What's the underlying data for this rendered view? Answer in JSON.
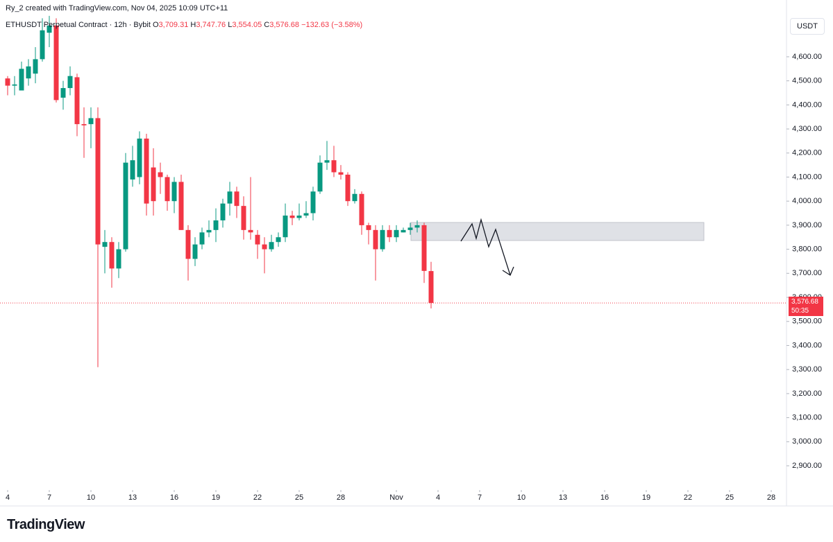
{
  "header": {
    "attribution": "Ry_2 created with TradingView.com, Nov 04, 2025 10:09 UTC+11",
    "symbol": "ETHUSDT Perpetual Contract · 12h · Bybit",
    "o_label": "O",
    "open": "3,709.31",
    "h_label": "H",
    "high": "3,747.76",
    "l_label": "L",
    "low": "3,554.05",
    "c_label": "C",
    "close": "3,576.68",
    "change": "−132.63 (−3.58%)",
    "currency": "USDT"
  },
  "footer": {
    "brand": "TradingView"
  },
  "chart_data": {
    "type": "candlestick",
    "up_color": "#089981",
    "down_color": "#f23645",
    "x": [
      0,
      0.5,
      1,
      1.5,
      2,
      2.5,
      3,
      3.5,
      4,
      4.5,
      5,
      5.5,
      6,
      6.5,
      7,
      7.5,
      8,
      8.5,
      9,
      9.5,
      10,
      10.5,
      11,
      11.5,
      12,
      12.5,
      13,
      13.5,
      14,
      14.5,
      15,
      15.5,
      16,
      16.5,
      17,
      17.5,
      18,
      18.5,
      19,
      19.5,
      20,
      20.5,
      21,
      21.5,
      22,
      22.5,
      23,
      23.5,
      24,
      24.5,
      25,
      25.5,
      26,
      26.5,
      27,
      27.5,
      28,
      28.5,
      29,
      29.5,
      30,
      30.5
    ],
    "open": [
      4510,
      4480,
      4460,
      4510,
      4530,
      4590,
      4700,
      4730,
      4430,
      4470,
      4515,
      4320,
      4320,
      4345,
      3810,
      3830,
      3720,
      3800,
      4090,
      4100,
      4260,
      4140,
      4120,
      4100,
      4000,
      4080,
      3880,
      3760,
      3820,
      3870,
      3880,
      3920,
      3990,
      4040,
      3980,
      3880,
      3860,
      3820,
      3800,
      3830,
      3850,
      3940,
      3930,
      3940,
      3950,
      4040,
      4160,
      4170,
      4120,
      4110,
      4000,
      4030,
      3900,
      3880,
      3800,
      3880,
      3850,
      3870,
      3880,
      3890,
      3900,
      3709.31
    ],
    "high": [
      4520,
      4520,
      4580,
      4590,
      4640,
      4760,
      4770,
      4760,
      4500,
      4560,
      4530,
      4390,
      4390,
      4390,
      3880,
      3850,
      3830,
      4200,
      4230,
      4290,
      4280,
      4220,
      4160,
      4110,
      4100,
      4110,
      3900,
      3850,
      3890,
      3920,
      3970,
      4010,
      4080,
      4060,
      4020,
      4100,
      3880,
      3850,
      3860,
      3870,
      3990,
      3960,
      3990,
      4000,
      4060,
      4190,
      4250,
      4230,
      4150,
      4120,
      4050,
      4040,
      3910,
      3900,
      3900,
      3900,
      3900,
      3890,
      3910,
      3920,
      3910,
      3747.76
    ],
    "low": [
      4440,
      4440,
      4460,
      4480,
      4490,
      4580,
      4640,
      4410,
      4380,
      4440,
      4270,
      4180,
      4220,
      3310,
      3700,
      3640,
      3680,
      3790,
      4060,
      4070,
      3940,
      3940,
      4030,
      3960,
      3950,
      3880,
      3670,
      3730,
      3800,
      3850,
      3830,
      3890,
      3940,
      3930,
      3840,
      3840,
      3760,
      3700,
      3790,
      3810,
      3830,
      3900,
      3920,
      3930,
      3920,
      4030,
      4130,
      4100,
      4090,
      3980,
      3990,
      3860,
      3820,
      3670,
      3790,
      3830,
      3830,
      3870,
      3860,
      3870,
      3660,
      3554.05
    ],
    "close": [
      4480,
      4485,
      4550,
      4560,
      4590,
      4710,
      4730,
      4420,
      4470,
      4520,
      4320,
      4315,
      4345,
      3820,
      3830,
      3720,
      3800,
      4160,
      4170,
      4260,
      3990,
      4000,
      4100,
      4000,
      4080,
      3880,
      3760,
      3820,
      3870,
      3880,
      3920,
      3990,
      4040,
      3980,
      3880,
      3870,
      3820,
      3800,
      3830,
      3850,
      3940,
      3930,
      3940,
      3950,
      4040,
      4160,
      4170,
      4120,
      4110,
      4000,
      4030,
      3900,
      3880,
      3800,
      3880,
      3850,
      3880,
      3880,
      3890,
      3900,
      3710,
      3576.68
    ],
    "xlim": [
      -0.55,
      56.1
    ],
    "xticks": [
      {
        "value": 0,
        "label": "4"
      },
      {
        "value": 3,
        "label": "7"
      },
      {
        "value": 6,
        "label": "10"
      },
      {
        "value": 9,
        "label": "13"
      },
      {
        "value": 12,
        "label": "16"
      },
      {
        "value": 15,
        "label": "19"
      },
      {
        "value": 18,
        "label": "22"
      },
      {
        "value": 21,
        "label": "25"
      },
      {
        "value": 24,
        "label": "28"
      },
      {
        "value": 28,
        "label": "Nov"
      },
      {
        "value": 31,
        "label": "4"
      },
      {
        "value": 34,
        "label": "7"
      },
      {
        "value": 37,
        "label": "10"
      },
      {
        "value": 40,
        "label": "13"
      },
      {
        "value": 43,
        "label": "16"
      },
      {
        "value": 46,
        "label": "19"
      },
      {
        "value": 49,
        "label": "22"
      },
      {
        "value": 52,
        "label": "25"
      },
      {
        "value": 55,
        "label": "28"
      }
    ],
    "ylim": [
      2805,
      4836
    ],
    "yticks": [
      {
        "value": 2900,
        "label": "2,900.00"
      },
      {
        "value": 3000,
        "label": "3,000.00"
      },
      {
        "value": 3100,
        "label": "3,100.00"
      },
      {
        "value": 3200,
        "label": "3,200.00"
      },
      {
        "value": 3300,
        "label": "3,300.00"
      },
      {
        "value": 3400,
        "label": "3,400.00"
      },
      {
        "value": 3500,
        "label": "3,500.00"
      },
      {
        "value": 3600,
        "label": "3,600.00"
      },
      {
        "value": 3700,
        "label": "3,700.00"
      },
      {
        "value": 3800,
        "label": "3,800.00"
      },
      {
        "value": 3900,
        "label": "3,900.00"
      },
      {
        "value": 4000,
        "label": "4,000.00"
      },
      {
        "value": 4100,
        "label": "4,100.00"
      },
      {
        "value": 4200,
        "label": "4,200.00"
      },
      {
        "value": 4300,
        "label": "4,300.00"
      },
      {
        "value": 4400,
        "label": "4,400.00"
      },
      {
        "value": 4500,
        "label": "4,500.00"
      },
      {
        "value": 4600,
        "label": "4,600.00"
      }
    ],
    "last_price": {
      "value": 3576.68,
      "label": "3,576.68"
    },
    "countdown": "50:35"
  }
}
